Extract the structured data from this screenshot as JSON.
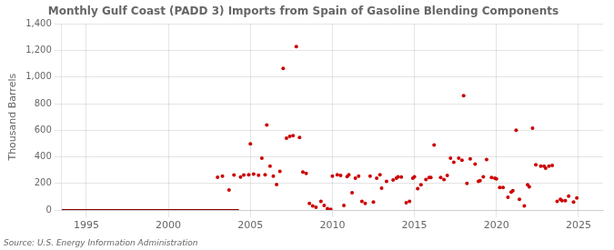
{
  "chart_data": {
    "type": "scatter",
    "title": "Monthly Gulf Coast (PADD 3) Imports from Spain of Gasoline Blending Components",
    "ylabel": "Thousand Barrels",
    "annotations": [
      "Source: U.S. Energy Information Administration"
    ],
    "xlim": [
      1993.5,
      2026.5
    ],
    "ylim": [
      0,
      1400
    ],
    "xticks": [
      1995,
      2000,
      2005,
      2010,
      2015,
      2020,
      2025
    ],
    "yticks": [
      0,
      200,
      400,
      600,
      800,
      {
        "value": 1000,
        "label": "1,000"
      },
      {
        "value": 1200,
        "label": "1,200"
      },
      {
        "value": 1400,
        "label": "1,400"
      }
    ],
    "grid": true,
    "series": [
      {
        "type": "line",
        "color": "#8b0000",
        "x": [
          1993.5,
          2004.3
        ],
        "values": [
          0,
          0
        ]
      },
      {
        "type": "scatter",
        "color": "#cc0000",
        "x": [
          2003.0,
          2003.3,
          2003.7,
          2004.0,
          2004.4,
          2004.6,
          2004.9,
          2005.0,
          2005.2,
          2005.5,
          2005.7,
          2005.9,
          2006.0,
          2006.2,
          2006.4,
          2006.6,
          2006.8,
          2007.0,
          2007.2,
          2007.4,
          2007.6,
          2007.8,
          2008.0,
          2008.2,
          2008.4,
          2008.6,
          2008.8,
          2009.0,
          2009.3,
          2009.5,
          2009.7,
          2009.9,
          2010.0,
          2010.3,
          2010.5,
          2010.7,
          2010.9,
          2011.0,
          2011.2,
          2011.4,
          2011.6,
          2011.8,
          2012.0,
          2012.3,
          2012.5,
          2012.7,
          2012.9,
          2013.0,
          2013.3,
          2013.7,
          2013.9,
          2014.0,
          2014.2,
          2014.5,
          2014.7,
          2014.9,
          2015.0,
          2015.2,
          2015.4,
          2015.7,
          2015.9,
          2016.0,
          2016.2,
          2016.6,
          2016.8,
          2017.0,
          2017.2,
          2017.4,
          2017.7,
          2017.9,
          2018.0,
          2018.2,
          2018.4,
          2018.7,
          2018.9,
          2019.0,
          2019.2,
          2019.4,
          2019.7,
          2019.9,
          2020.0,
          2020.2,
          2020.4,
          2020.7,
          2020.9,
          2021.0,
          2021.2,
          2021.4,
          2021.7,
          2021.9,
          2022.0,
          2022.2,
          2022.4,
          2022.7,
          2022.9,
          2023.0,
          2023.2,
          2023.4,
          2023.7,
          2023.9,
          2024.0,
          2024.2,
          2024.4,
          2024.7,
          2024.9
        ],
        "values": [
          247,
          255,
          150,
          263,
          248,
          263,
          265,
          498,
          270,
          262,
          390,
          265,
          640,
          330,
          255,
          192,
          290,
          1065,
          540,
          555,
          560,
          1230,
          545,
          285,
          275,
          50,
          30,
          20,
          65,
          35,
          10,
          5,
          255,
          265,
          260,
          35,
          252,
          265,
          130,
          240,
          255,
          65,
          50,
          255,
          60,
          240,
          265,
          165,
          215,
          225,
          240,
          250,
          248,
          55,
          65,
          240,
          250,
          160,
          190,
          230,
          245,
          245,
          490,
          245,
          230,
          260,
          390,
          360,
          390,
          375,
          860,
          200,
          385,
          345,
          215,
          220,
          250,
          380,
          245,
          240,
          235,
          170,
          170,
          95,
          135,
          145,
          600,
          80,
          30,
          190,
          175,
          615,
          340,
          330,
          330,
          315,
          330,
          335,
          65,
          80,
          70,
          70,
          105,
          60,
          90
        ]
      }
    ]
  }
}
